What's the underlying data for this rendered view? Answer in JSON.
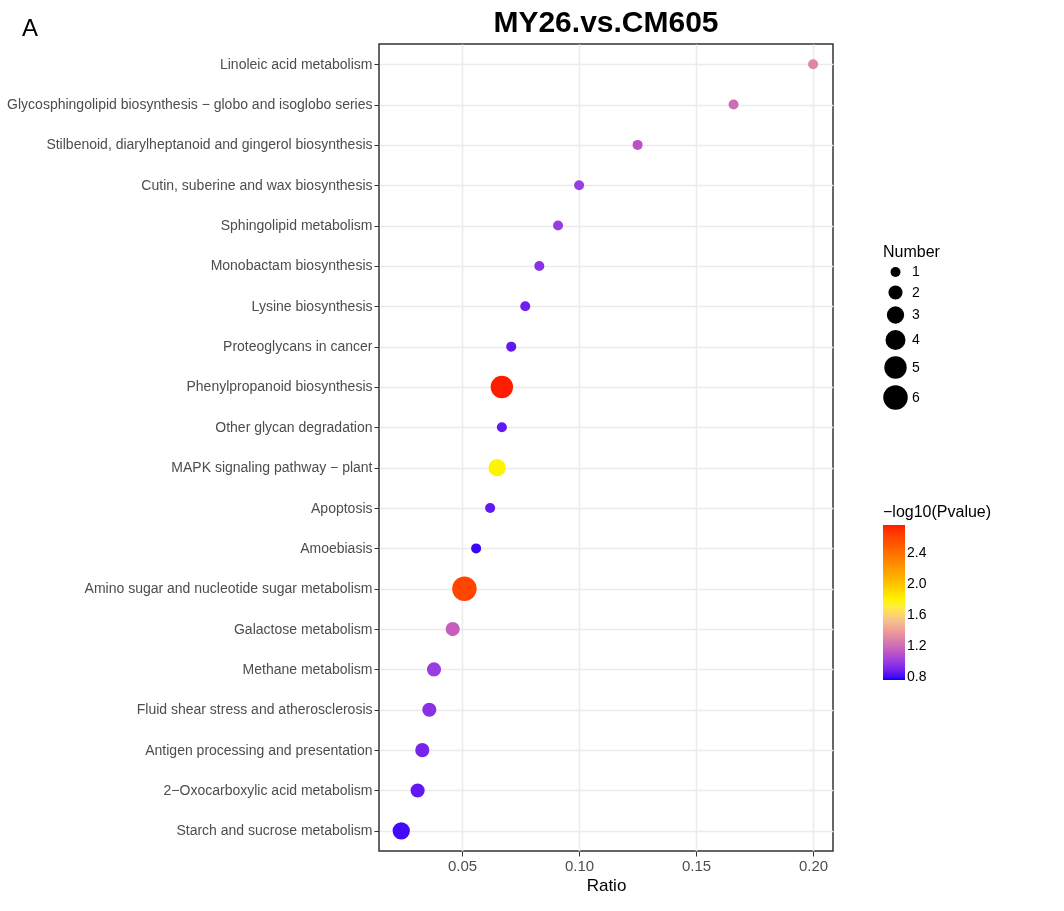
{
  "chart_data": {
    "type": "bubble",
    "title": "MY26.vs.CM605",
    "xlabel": "Ratio",
    "legend_title": "Number",
    "clabel": "−log10(Pvalue)",
    "annotations": [
      "A"
    ],
    "categories": [
      "Linoleic acid metabolism",
      "Glycosphingolipid biosynthesis − globo and isoglobo series",
      "Stilbenoid, diarylheptanoid and gingerol biosynthesis",
      "Cutin, suberine and wax biosynthesis",
      "Sphingolipid metabolism",
      "Monobactam biosynthesis",
      "Lysine biosynthesis",
      "Proteoglycans in cancer",
      "Phenylpropanoid biosynthesis",
      "Other glycan degradation",
      "MAPK signaling pathway − plant",
      "Apoptosis",
      "Amoebiasis",
      "Amino sugar and nucleotide sugar metabolism",
      "Galactose metabolism",
      "Methane metabolism",
      "Fluid shear stress and atherosclerosis",
      "Antigen processing and presentation",
      "2−Oxocarboxylic acid metabolism",
      "Starch and sucrose metabolism"
    ],
    "values": [
      0.2,
      0.166,
      0.125,
      0.1,
      0.091,
      0.083,
      0.077,
      0.071,
      0.067,
      0.067,
      0.065,
      0.062,
      0.056,
      0.051,
      0.046,
      0.038,
      0.036,
      0.033,
      0.031,
      0.024
    ],
    "sizes": [
      1,
      1,
      1,
      1,
      1,
      1,
      1,
      1,
      5,
      1,
      3,
      1,
      1,
      6,
      2,
      2,
      2,
      2,
      2,
      3
    ],
    "size_legend": [
      1,
      2,
      3,
      4,
      5,
      6
    ],
    "cvalues": [
      1.3,
      1.2,
      1.1,
      1.0,
      1.0,
      0.95,
      0.88,
      0.85,
      2.75,
      0.85,
      1.8,
      0.85,
      0.79,
      2.6,
      1.15,
      1.0,
      0.95,
      0.9,
      0.85,
      0.8
    ],
    "clim": [
      0.76,
      2.755
    ],
    "cticks": [
      0.8,
      1.2,
      1.6,
      {
        "value": 2,
        "label": "2.0"
      },
      2.4
    ],
    "xlim": [
      0.0145,
      0.2085
    ],
    "xticks": [
      0.05,
      {
        "value": 0.1,
        "label": "0.10"
      },
      0.15,
      {
        "value": 0.2,
        "label": "0.20"
      }
    ],
    "grid": true,
    "marker": "circle",
    "orientation": "horizontal"
  }
}
